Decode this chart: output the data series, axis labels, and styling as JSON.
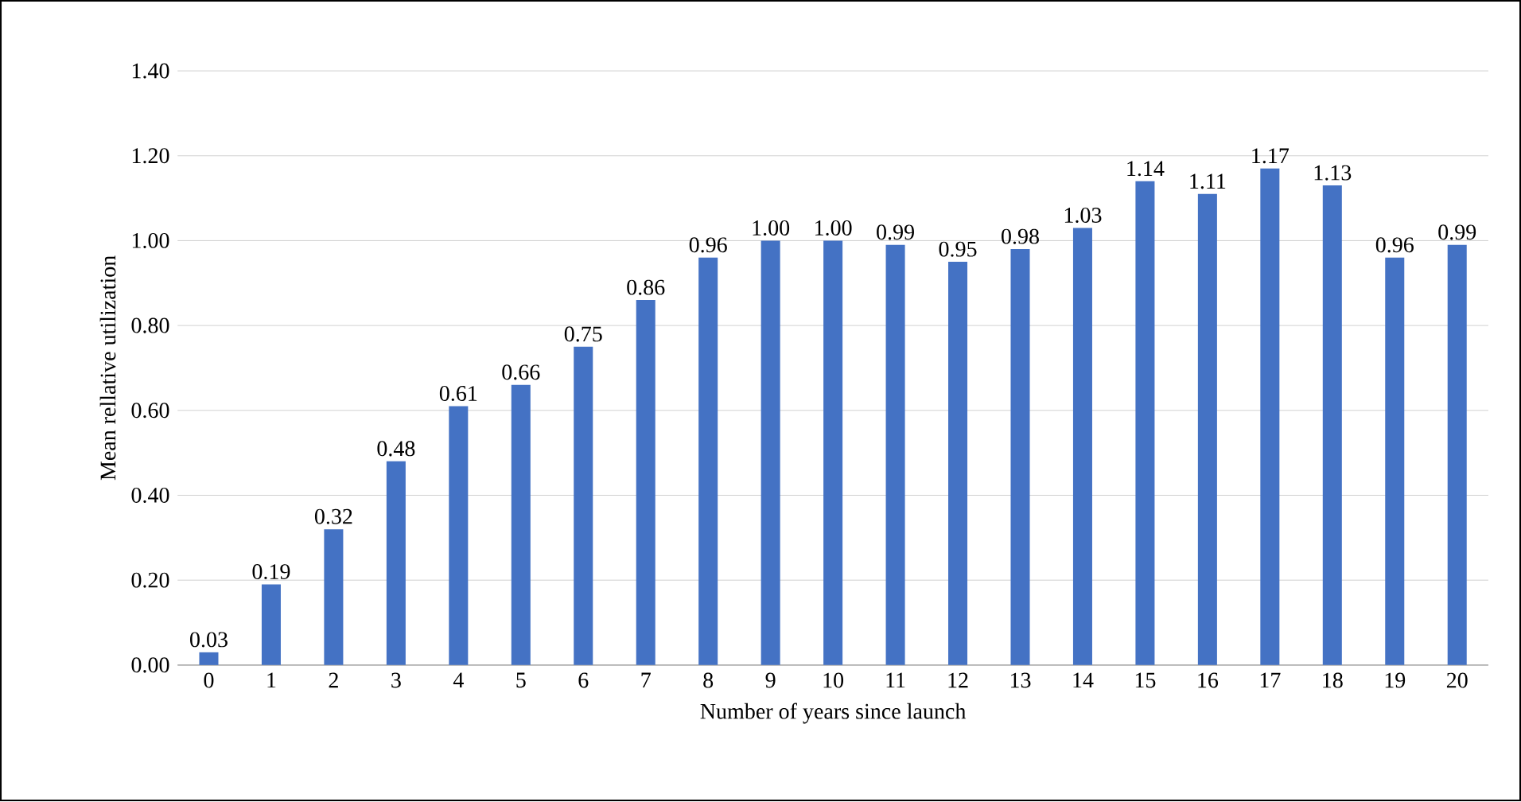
{
  "chart_data": {
    "type": "bar",
    "xlabel": "Number of years since launch",
    "ylabel": "Mean rellative utilization",
    "categories": [
      "0",
      "1",
      "2",
      "3",
      "4",
      "5",
      "6",
      "7",
      "8",
      "9",
      "10",
      "11",
      "12",
      "13",
      "14",
      "15",
      "16",
      "17",
      "18",
      "19",
      "20"
    ],
    "values": [
      0.03,
      0.19,
      0.32,
      0.48,
      0.61,
      0.66,
      0.75,
      0.86,
      0.96,
      1.0,
      1.0,
      0.99,
      0.95,
      0.98,
      1.03,
      1.14,
      1.11,
      1.17,
      1.13,
      0.96,
      0.99
    ],
    "value_labels": [
      "0.03",
      "0.19",
      "0.32",
      "0.48",
      "0.61",
      "0.66",
      "0.75",
      "0.86",
      "0.96",
      "1.00",
      "1.00",
      "0.99",
      "0.95",
      "0.98",
      "1.03",
      "1.14",
      "1.11",
      "1.17",
      "1.13",
      "0.96",
      "0.99"
    ],
    "color": "#4472c4",
    "ylim": [
      0,
      1.4
    ],
    "yticks": [
      {
        "value": 0,
        "label": "0.00"
      },
      {
        "value": 0.2,
        "label": "0.20"
      },
      {
        "value": 0.4,
        "label": "0.40"
      },
      {
        "value": 0.6,
        "label": "0.60"
      },
      {
        "value": 0.8,
        "label": "0.80"
      },
      {
        "value": 1.0,
        "label": "1.00"
      },
      {
        "value": 1.2,
        "label": "1.20"
      },
      {
        "value": 1.4,
        "label": "1.40"
      }
    ],
    "grid": "y"
  }
}
